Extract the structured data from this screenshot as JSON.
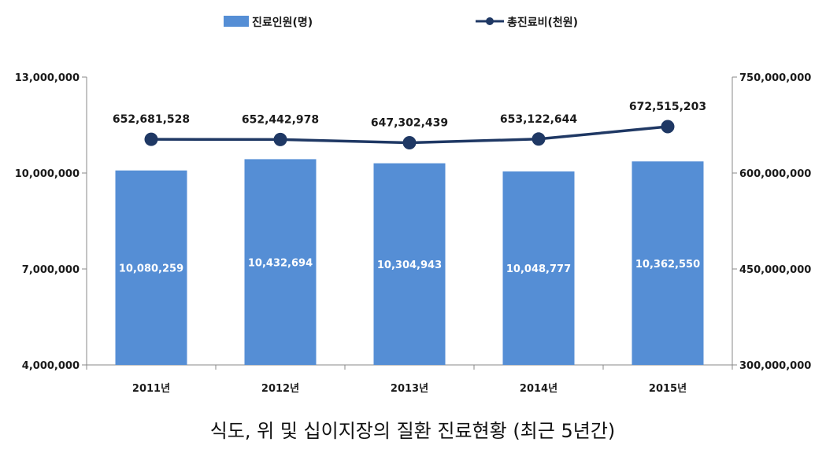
{
  "chart_data": {
    "type": "bar",
    "title": "식도, 위 및 십이지장의 질환 진료현황 (최근 5년간)",
    "categories": [
      "2011년",
      "2012년",
      "2013년",
      "2014년",
      "2015년"
    ],
    "series": [
      {
        "name": "진료인원(명)",
        "type": "bar",
        "axis": "left",
        "color": "#558ED5",
        "values": [
          10080259,
          10432694,
          10304943,
          10048777,
          10362550
        ],
        "labels": [
          "10,080,259",
          "10,432,694",
          "10,304,943",
          "10,048,777",
          "10,362,550"
        ]
      },
      {
        "name": "총진료비(천원)",
        "type": "line",
        "axis": "right",
        "color": "#1F3864",
        "values": [
          652681528,
          652442978,
          647302439,
          653122644,
          672515203
        ],
        "labels": [
          "652,681,528",
          "652,442,978",
          "647,302,439",
          "653,122,644",
          "672,515,203"
        ]
      }
    ],
    "y_left": {
      "range": [
        4000000,
        13000000
      ],
      "ticks": [
        4000000,
        7000000,
        10000000,
        13000000
      ],
      "tick_labels": [
        "4,000,000",
        "7,000,000",
        "10,000,000",
        "13,000,000"
      ]
    },
    "y_right": {
      "range": [
        300000000,
        750000000
      ],
      "ticks": [
        300000000,
        450000000,
        600000000,
        750000000
      ],
      "tick_labels": [
        "300,000,000",
        "450,000,000",
        "600,000,000",
        "750,000,000"
      ]
    },
    "legend_position": "top",
    "grid": false
  }
}
